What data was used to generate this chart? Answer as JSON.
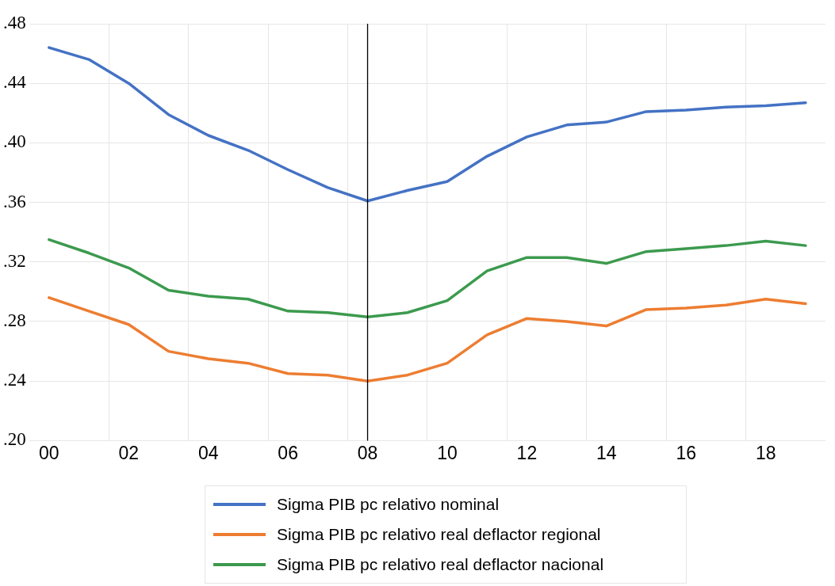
{
  "chart_data": {
    "type": "line",
    "x": [
      2000,
      2001,
      2002,
      2003,
      2004,
      2005,
      2006,
      2007,
      2008,
      2009,
      2010,
      2011,
      2012,
      2013,
      2014,
      2015,
      2016,
      2017,
      2018,
      2019
    ],
    "series": [
      {
        "name": "Sigma PIB pc relativo nominal",
        "color": "#4472c4",
        "values": [
          0.464,
          0.456,
          0.44,
          0.419,
          0.405,
          0.395,
          0.382,
          0.37,
          0.361,
          0.368,
          0.374,
          0.391,
          0.404,
          0.412,
          0.414,
          0.421,
          0.422,
          0.424,
          0.425,
          0.427
        ]
      },
      {
        "name": "Sigma PIB pc relativo real deflactor regional",
        "color": "#ed7d31",
        "values": [
          0.296,
          0.287,
          0.278,
          0.26,
          0.255,
          0.252,
          0.245,
          0.244,
          0.24,
          0.244,
          0.252,
          0.271,
          0.282,
          0.28,
          0.277,
          0.288,
          0.289,
          0.291,
          0.295,
          0.292
        ]
      },
      {
        "name": "Sigma PIB pc relativo real deflactor nacional",
        "color": "#3c9a4e",
        "values": [
          0.335,
          0.326,
          0.316,
          0.301,
          0.297,
          0.295,
          0.287,
          0.286,
          0.283,
          0.286,
          0.294,
          0.314,
          0.323,
          0.323,
          0.319,
          0.327,
          0.329,
          0.331,
          0.334,
          0.331
        ]
      }
    ],
    "xlim": [
      1999.5,
      2019.5
    ],
    "xticks": [
      {
        "value": 2000,
        "label": "00"
      },
      {
        "value": 2001.5,
        "label": null
      },
      {
        "value": 2002,
        "label": "02"
      },
      {
        "value": 2003.5,
        "label": null
      },
      {
        "value": 2004,
        "label": "04"
      },
      {
        "value": 2005.5,
        "label": null
      },
      {
        "value": 2006,
        "label": "06"
      },
      {
        "value": 2007.5,
        "label": null
      },
      {
        "value": 2008,
        "label": "08"
      },
      {
        "value": 2009.5,
        "label": null
      },
      {
        "value": 2010,
        "label": "10"
      },
      {
        "value": 2011.5,
        "label": null
      },
      {
        "value": 2012,
        "label": "12"
      },
      {
        "value": 2013.5,
        "label": null
      },
      {
        "value": 2014,
        "label": "14"
      },
      {
        "value": 2015.5,
        "label": null
      },
      {
        "value": 2016,
        "label": "16"
      },
      {
        "value": 2017.5,
        "label": null
      },
      {
        "value": 2018,
        "label": "18"
      }
    ],
    "ylim": [
      0.2,
      0.48
    ],
    "yticks": [
      {
        "value": 0.2,
        "label": ".20"
      },
      {
        "value": 0.24,
        "label": ".24"
      },
      {
        "value": 0.28,
        "label": ".28"
      },
      {
        "value": 0.32,
        "label": ".32"
      },
      {
        "value": 0.36,
        "label": ".36"
      },
      {
        "value": 0.4,
        "label": ".40"
      },
      {
        "value": 0.44,
        "label": ".44"
      },
      {
        "value": 0.48,
        "label": ".48"
      }
    ],
    "ref_lines": [
      {
        "axis": "x",
        "value": 2008,
        "color": "#000000",
        "line_style": "solid"
      }
    ],
    "grid": true,
    "legend": "bottom",
    "marker": "none",
    "line_style": "solid"
  }
}
